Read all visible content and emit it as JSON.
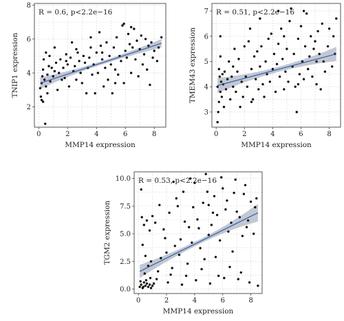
{
  "chart_data": [
    {
      "type": "scatter",
      "annotation": "R = 0.6, p<2.2e−16",
      "xlabel": "MMP14 expression",
      "ylabel": "TNIP1 expression",
      "xlim": [
        -0.3,
        8.8
      ],
      "ylim": [
        0.8,
        8.1
      ],
      "xticks": [
        0,
        2,
        4,
        6,
        8
      ],
      "yticks": [
        2,
        4,
        6,
        8
      ],
      "ytick_labels": [
        "2",
        "4",
        "6",
        "8"
      ],
      "grid": true,
      "fit": {
        "x": [
          0.1,
          8.5
        ],
        "y": [
          3.4,
          5.75
        ],
        "ci_start": 0.35,
        "ci_mid": 0.1,
        "ci_end": 0.25
      },
      "points": [
        [
          0.1,
          3.1
        ],
        [
          0.2,
          3.4
        ],
        [
          0.3,
          2.3
        ],
        [
          0.15,
          2.6
        ],
        [
          0.25,
          3.8
        ],
        [
          0.4,
          3.6
        ],
        [
          0.3,
          4.2
        ],
        [
          0.5,
          3.2
        ],
        [
          0.6,
          2.8
        ],
        [
          0.2,
          2.4
        ],
        [
          0.35,
          4.8
        ],
        [
          0.5,
          5.2
        ],
        [
          0.7,
          4.4
        ],
        [
          0.45,
          1.0
        ],
        [
          0.6,
          3.9
        ],
        [
          0.8,
          3.5
        ],
        [
          0.9,
          4.3
        ],
        [
          1.0,
          3.8
        ],
        [
          0.75,
          5.0
        ],
        [
          1.1,
          4.1
        ],
        [
          1.2,
          4.6
        ],
        [
          1.1,
          5.5
        ],
        [
          1.3,
          3.0
        ],
        [
          1.4,
          4.0
        ],
        [
          1.5,
          4.8
        ],
        [
          1.6,
          3.6
        ],
        [
          1.7,
          4.3
        ],
        [
          1.8,
          3.7
        ],
        [
          1.9,
          5.1
        ],
        [
          2.0,
          4.5
        ],
        [
          2.1,
          3.2
        ],
        [
          2.2,
          4.9
        ],
        [
          2.3,
          5.8
        ],
        [
          2.4,
          4.1
        ],
        [
          2.5,
          4.4
        ],
        [
          2.6,
          3.6
        ],
        [
          2.7,
          5.2
        ],
        [
          2.8,
          4.7
        ],
        [
          2.9,
          4.0
        ],
        [
          3.0,
          3.4
        ],
        [
          3.1,
          5.0
        ],
        [
          3.2,
          4.6
        ],
        [
          3.3,
          2.8
        ],
        [
          3.4,
          4.3
        ],
        [
          3.5,
          4.9
        ],
        [
          3.6,
          5.5
        ],
        [
          3.7,
          3.9
        ],
        [
          3.8,
          4.5
        ],
        [
          3.9,
          2.8
        ],
        [
          4.0,
          5.2
        ],
        [
          4.1,
          4.0
        ],
        [
          4.2,
          6.4
        ],
        [
          4.3,
          5.6
        ],
        [
          4.4,
          4.8
        ],
        [
          4.5,
          3.2
        ],
        [
          4.6,
          4.3
        ],
        [
          4.7,
          5.8
        ],
        [
          4.8,
          3.6
        ],
        [
          4.9,
          5.0
        ],
        [
          5.0,
          4.5
        ],
        [
          5.1,
          2.8
        ],
        [
          5.2,
          5.5
        ],
        [
          5.3,
          4.2
        ],
        [
          5.4,
          6.1
        ],
        [
          5.5,
          3.9
        ],
        [
          5.6,
          5.0
        ],
        [
          5.7,
          4.7
        ],
        [
          5.8,
          6.8
        ],
        [
          5.9,
          3.4
        ],
        [
          6.0,
          5.3
        ],
        [
          6.1,
          4.9
        ],
        [
          6.2,
          6.3
        ],
        [
          6.3,
          5.7
        ],
        [
          6.4,
          4.0
        ],
        [
          6.5,
          5.5
        ],
        [
          6.6,
          6.6
        ],
        [
          6.7,
          4.8
        ],
        [
          6.8,
          5.9
        ],
        [
          6.9,
          3.8
        ],
        [
          7.0,
          5.4
        ],
        [
          7.1,
          6.2
        ],
        [
          7.2,
          4.5
        ],
        [
          7.3,
          5.1
        ],
        [
          7.4,
          6.0
        ],
        [
          7.5,
          4.2
        ],
        [
          7.6,
          5.6
        ],
        [
          7.7,
          3.3
        ],
        [
          7.8,
          5.8
        ],
        [
          8.0,
          5.3
        ],
        [
          8.2,
          4.7
        ],
        [
          8.3,
          5.5
        ],
        [
          8.5,
          6.1
        ],
        [
          5.9,
          6.9
        ],
        [
          6.4,
          6.7
        ],
        [
          3.6,
          6.1
        ],
        [
          2.6,
          5.4
        ],
        [
          1.9,
          4.7
        ],
        [
          4.4,
          5.2
        ],
        [
          5.3,
          3.4
        ],
        [
          7.9,
          4.9
        ]
      ]
    },
    {
      "type": "scatter",
      "annotation": "R = 0.51, p<2.2e−16",
      "xlabel": "MMP14 expression",
      "ylabel": "TMEM43 expression",
      "xlim": [
        -0.3,
        8.8
      ],
      "ylim": [
        2.4,
        7.3
      ],
      "xticks": [
        0,
        2,
        4,
        6,
        8
      ],
      "yticks": [
        3,
        4,
        5,
        6,
        7
      ],
      "ytick_labels": [
        "3",
        "4",
        "5",
        "6",
        "7"
      ],
      "grid": true,
      "fit": {
        "x": [
          0.1,
          8.5
        ],
        "y": [
          4.05,
          5.3
        ],
        "ci_start": 0.3,
        "ci_mid": 0.1,
        "ci_end": 0.28
      },
      "points": [
        [
          0.1,
          2.6
        ],
        [
          0.15,
          3.0
        ],
        [
          0.2,
          3.4
        ],
        [
          0.1,
          4.0
        ],
        [
          0.25,
          4.4
        ],
        [
          0.3,
          3.8
        ],
        [
          0.2,
          4.7
        ],
        [
          0.35,
          4.2
        ],
        [
          0.4,
          3.6
        ],
        [
          0.3,
          5.2
        ],
        [
          0.45,
          4.5
        ],
        [
          0.5,
          4.1
        ],
        [
          0.6,
          4.6
        ],
        [
          0.7,
          3.9
        ],
        [
          0.55,
          3.2
        ],
        [
          0.8,
          4.3
        ],
        [
          0.9,
          5.0
        ],
        [
          1.0,
          3.5
        ],
        [
          1.1,
          4.4
        ],
        [
          1.2,
          4.8
        ],
        [
          1.3,
          5.5
        ],
        [
          1.4,
          3.8
        ],
        [
          1.5,
          4.6
        ],
        [
          1.6,
          5.1
        ],
        [
          1.7,
          3.2
        ],
        [
          1.8,
          4.2
        ],
        [
          1.9,
          3.6
        ],
        [
          2.0,
          5.6
        ],
        [
          2.1,
          4.4
        ],
        [
          2.2,
          4.0
        ],
        [
          2.3,
          5.8
        ],
        [
          2.4,
          6.3
        ],
        [
          2.5,
          4.7
        ],
        [
          2.6,
          3.5
        ],
        [
          2.7,
          5.2
        ],
        [
          2.8,
          4.3
        ],
        [
          2.9,
          5.4
        ],
        [
          3.0,
          3.9
        ],
        [
          3.1,
          4.8
        ],
        [
          3.2,
          5.6
        ],
        [
          3.3,
          4.1
        ],
        [
          3.4,
          3.6
        ],
        [
          3.5,
          5.0
        ],
        [
          3.6,
          4.5
        ],
        [
          3.7,
          5.9
        ],
        [
          3.8,
          4.2
        ],
        [
          3.9,
          6.1
        ],
        [
          4.0,
          4.7
        ],
        [
          4.1,
          5.3
        ],
        [
          4.2,
          3.8
        ],
        [
          4.3,
          4.9
        ],
        [
          4.4,
          5.7
        ],
        [
          4.5,
          4.4
        ],
        [
          4.6,
          6.3
        ],
        [
          4.7,
          5.1
        ],
        [
          4.8,
          3.9
        ],
        [
          4.9,
          4.6
        ],
        [
          5.0,
          5.5
        ],
        [
          5.1,
          4.2
        ],
        [
          5.2,
          6.6
        ],
        [
          5.3,
          7.1
        ],
        [
          5.4,
          4.8
        ],
        [
          5.5,
          5.3
        ],
        [
          5.6,
          4.0
        ],
        [
          5.7,
          3.0
        ],
        [
          5.8,
          5.9
        ],
        [
          5.9,
          4.5
        ],
        [
          6.0,
          6.4
        ],
        [
          6.1,
          5.0
        ],
        [
          6.2,
          4.3
        ],
        [
          6.3,
          5.6
        ],
        [
          6.4,
          6.9
        ],
        [
          6.5,
          4.7
        ],
        [
          6.6,
          5.2
        ],
        [
          6.7,
          6.0
        ],
        [
          6.8,
          4.4
        ],
        [
          6.9,
          5.5
        ],
        [
          7.0,
          5.8
        ],
        [
          7.1,
          4.1
        ],
        [
          7.2,
          6.2
        ],
        [
          7.3,
          5.3
        ],
        [
          7.4,
          3.9
        ],
        [
          7.5,
          6.5
        ],
        [
          7.6,
          5.0
        ],
        [
          7.7,
          4.6
        ],
        [
          7.9,
          5.6
        ],
        [
          8.0,
          6.3
        ],
        [
          8.2,
          4.8
        ],
        [
          8.3,
          6.0
        ],
        [
          8.4,
          5.3
        ],
        [
          8.5,
          6.7
        ],
        [
          4.4,
          7.0
        ],
        [
          3.1,
          6.7
        ],
        [
          6.2,
          7.0
        ],
        [
          0.3,
          6.0
        ],
        [
          1.2,
          4.0
        ],
        [
          2.5,
          3.4
        ],
        [
          4.8,
          6.0
        ],
        [
          5.8,
          4.1
        ],
        [
          7.1,
          5.0
        ]
      ]
    },
    {
      "type": "scatter",
      "annotation": "R = 0.53, p<2.2e−16",
      "xlabel": "MMP14 expression",
      "ylabel": "TGM2 expression",
      "xlim": [
        -0.3,
        8.8
      ],
      "ylim": [
        -0.4,
        10.6
      ],
      "xticks": [
        0,
        2,
        4,
        6,
        8
      ],
      "yticks": [
        0,
        2.5,
        5,
        7.5,
        10
      ],
      "ytick_labels": [
        "0.0",
        "2.5",
        "5.0",
        "7.5",
        "10.0"
      ],
      "grid": true,
      "fit": {
        "x": [
          0.1,
          8.5
        ],
        "y": [
          1.6,
          6.9
        ],
        "ci_start": 0.6,
        "ci_mid": 0.2,
        "ci_end": 0.8
      },
      "points": [
        [
          0.1,
          0.2
        ],
        [
          0.2,
          0.4
        ],
        [
          0.3,
          0.1
        ],
        [
          0.4,
          0.6
        ],
        [
          0.5,
          0.3
        ],
        [
          0.6,
          0.5
        ],
        [
          0.7,
          0.2
        ],
        [
          0.8,
          0.4
        ],
        [
          0.9,
          0.1
        ],
        [
          1.0,
          0.3
        ],
        [
          1.1,
          0.5
        ],
        [
          0.15,
          0.7
        ],
        [
          0.35,
          0.2
        ],
        [
          0.55,
          0.8
        ],
        [
          0.25,
          6.5
        ],
        [
          0.4,
          5.8
        ],
        [
          0.6,
          6.2
        ],
        [
          0.8,
          5.3
        ],
        [
          1.0,
          6.6
        ],
        [
          0.3,
          4.0
        ],
        [
          0.5,
          3.0
        ],
        [
          0.7,
          2.1
        ],
        [
          0.9,
          2.5
        ],
        [
          0.2,
          9.0
        ],
        [
          1.2,
          6.0
        ],
        [
          1.4,
          1.6
        ],
        [
          1.6,
          2.8
        ],
        [
          1.8,
          5.4
        ],
        [
          2.0,
          3.3
        ],
        [
          2.2,
          6.9
        ],
        [
          2.4,
          1.9
        ],
        [
          2.6,
          3.9
        ],
        [
          2.8,
          7.5
        ],
        [
          3.0,
          4.5
        ],
        [
          3.2,
          8.8
        ],
        [
          3.4,
          1.2
        ],
        [
          3.6,
          5.6
        ],
        [
          3.8,
          4.2
        ],
        [
          4.0,
          9.6
        ],
        [
          4.2,
          6.3
        ],
        [
          4.4,
          3.7
        ],
        [
          4.6,
          7.8
        ],
        [
          4.8,
          10.4
        ],
        [
          5.0,
          4.9
        ],
        [
          5.2,
          5.8
        ],
        [
          5.4,
          8.4
        ],
        [
          5.6,
          6.7
        ],
        [
          5.8,
          4.4
        ],
        [
          6.0,
          9.1
        ],
        [
          6.2,
          7.2
        ],
        [
          6.4,
          5.2
        ],
        [
          6.6,
          6.0
        ],
        [
          6.8,
          8.7
        ],
        [
          7.0,
          7.0
        ],
        [
          7.2,
          6.5
        ],
        [
          7.4,
          4.8
        ],
        [
          7.6,
          9.4
        ],
        [
          7.8,
          6.2
        ],
        [
          8.0,
          7.9
        ],
        [
          8.2,
          5.0
        ],
        [
          8.4,
          8.2
        ],
        [
          8.5,
          0.3
        ],
        [
          2.1,
          0.6
        ],
        [
          3.1,
          0.4
        ],
        [
          4.1,
          0.8
        ],
        [
          5.1,
          0.5
        ],
        [
          6.1,
          1.0
        ],
        [
          7.1,
          0.9
        ],
        [
          3.5,
          2.3
        ],
        [
          4.5,
          1.8
        ],
        [
          5.5,
          2.9
        ],
        [
          6.5,
          2.0
        ],
        [
          7.3,
          1.5
        ],
        [
          2.5,
          9.7
        ],
        [
          3.7,
          10.0
        ],
        [
          5.9,
          10.1
        ],
        [
          6.9,
          9.9
        ],
        [
          1.5,
          7.6
        ],
        [
          2.7,
          8.2
        ],
        [
          4.9,
          8.8
        ],
        [
          6.3,
          8.0
        ],
        [
          7.5,
          8.6
        ],
        [
          3.3,
          6.1
        ],
        [
          4.3,
          5.5
        ],
        [
          5.3,
          6.9
        ],
        [
          7.7,
          5.6
        ],
        [
          1.9,
          4.6
        ],
        [
          2.9,
          3.1
        ],
        [
          4.7,
          2.7
        ],
        [
          6.7,
          3.4
        ],
        [
          8.3,
          7.4
        ],
        [
          0.45,
          1.4
        ],
        [
          0.85,
          1.0
        ],
        [
          1.3,
          0.9
        ],
        [
          2.3,
          1.3
        ],
        [
          5.7,
          1.2
        ],
        [
          7.9,
          0.6
        ],
        [
          3.9,
          7.4
        ],
        [
          5.0,
          7.6
        ]
      ]
    }
  ]
}
